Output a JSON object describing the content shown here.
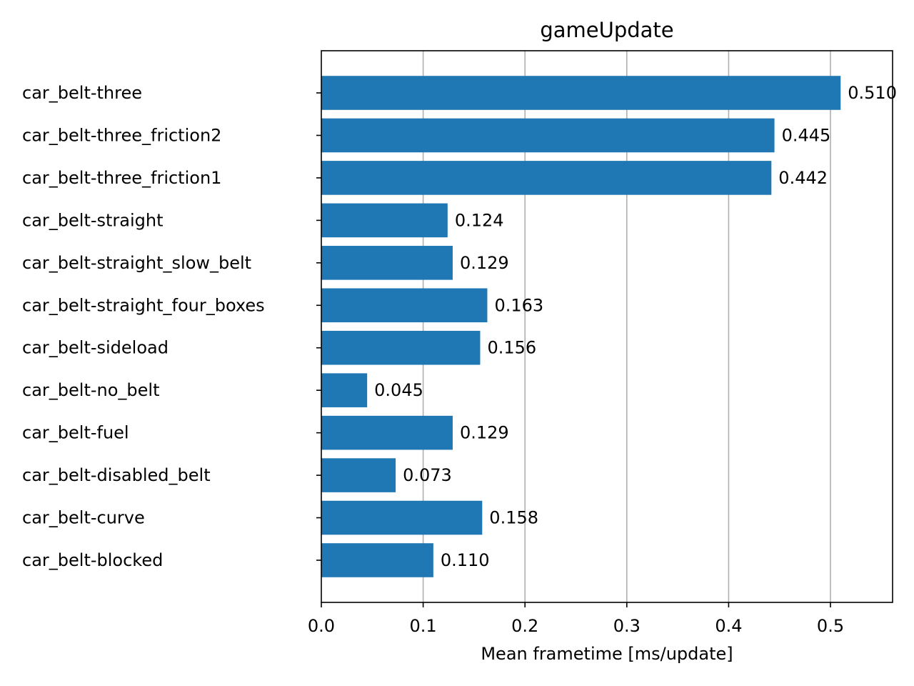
{
  "chart_data": {
    "type": "bar",
    "orientation": "horizontal",
    "title": "gameUpdate",
    "xlabel": "Mean frametime [ms/update]",
    "ylabel": "",
    "xlim": [
      0,
      0.561
    ],
    "xticks": [
      {
        "value": 0.0,
        "label": "0.0"
      },
      {
        "value": 0.1,
        "label": "0.1"
      },
      {
        "value": 0.2,
        "label": "0.2"
      },
      {
        "value": 0.3,
        "label": "0.3"
      },
      {
        "value": 0.4,
        "label": "0.4"
      },
      {
        "value": 0.5,
        "label": "0.5"
      }
    ],
    "grid": "x-major",
    "bar_color": "#1f77b4",
    "grid_color": "#b0b0b0",
    "categories": [
      "car_belt-three",
      "car_belt-three_friction2",
      "car_belt-three_friction1",
      "car_belt-straight",
      "car_belt-straight_slow_belt",
      "car_belt-straight_four_boxes",
      "car_belt-sideload",
      "car_belt-no_belt",
      "car_belt-fuel",
      "car_belt-disabled_belt",
      "car_belt-curve",
      "car_belt-blocked"
    ],
    "values": [
      0.51,
      0.445,
      0.442,
      0.124,
      0.129,
      0.163,
      0.156,
      0.045,
      0.129,
      0.073,
      0.158,
      0.11
    ],
    "value_labels": [
      "0.510",
      "0.445",
      "0.442",
      "0.124",
      "0.129",
      "0.163",
      "0.156",
      "0.045",
      "0.129",
      "0.073",
      "0.158",
      "0.110"
    ]
  }
}
